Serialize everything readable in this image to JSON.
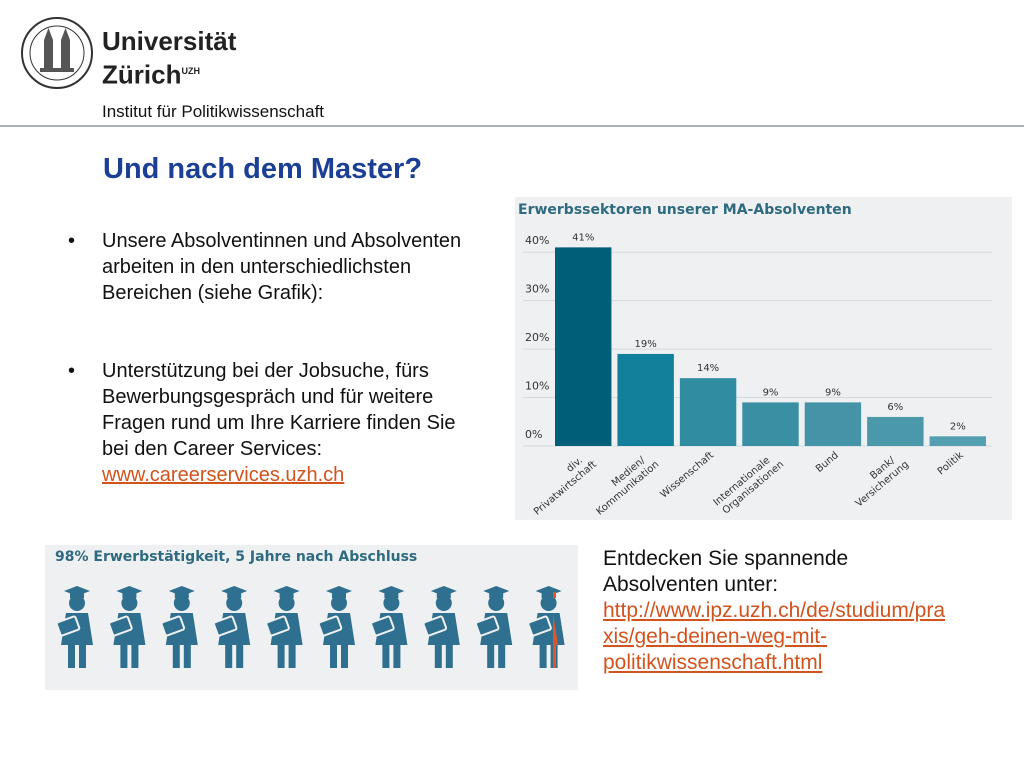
{
  "header": {
    "university_line1": "Universität",
    "university_line2": "Zürich",
    "university_mark": "UZH",
    "institute": "Institut für Politikwissenschaft"
  },
  "title": "Und nach dem Master?",
  "bullets": [
    {
      "lines": [
        "Unsere Absolventinnen und Absolventen",
        "arbeiten in den unterschiedlichsten",
        "Bereichen (siehe Grafik):"
      ]
    },
    {
      "lines": [
        "Unterstützung bei der Jobsuche, fürs",
        "Bewerbungsgespräch und für weitere",
        "Fragen rund um Ihre Karriere finden Sie",
        "bei den Career Services:"
      ],
      "link": "www.careerservices.uzh.ch"
    }
  ],
  "chart_data": {
    "type": "bar",
    "title": "Erwerbssektoren unserer MA-Absolventen",
    "categories": [
      "div.\nPrivatwirtschaft",
      "Medien/\nKommunikation",
      "Wissenschaft",
      "Internationale\nOrganisationen",
      "Bund",
      "Bank/\nVersicherung",
      "Politik"
    ],
    "values": [
      41,
      19,
      14,
      9,
      9,
      6,
      2
    ],
    "value_labels": [
      "41%",
      "19%",
      "14%",
      "9%",
      "9%",
      "6%",
      "2%"
    ],
    "colors": [
      "#005f78",
      "#12809a",
      "#2f8ca1",
      "#3b8fa3",
      "#4593a6",
      "#4b98aa",
      "#54a0b1"
    ],
    "ylim": [
      0,
      45
    ],
    "yticks": [
      {
        "value": 0,
        "label": "0%"
      },
      {
        "value": 10,
        "label": "10%"
      },
      {
        "value": 20,
        "label": "20%"
      },
      {
        "value": 30,
        "label": "30%"
      },
      {
        "value": 40,
        "label": "40%"
      }
    ],
    "grid": true
  },
  "infographic": {
    "title": "98% Erwerbstätigkeit, 5 Jahre nach Abschluss"
  },
  "side": {
    "lines": [
      "Entdecken Sie spannende",
      "Absolventen unter:"
    ],
    "link_lines": [
      "http://www.ipz.uzh.ch/de/studium/pra",
      "xis/geh-deinen-weg-mit-",
      "politikwissenschaft.html"
    ]
  }
}
